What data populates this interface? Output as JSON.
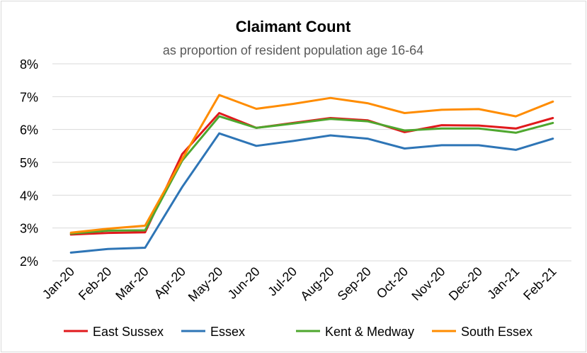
{
  "chart_data": {
    "type": "line",
    "title": "Claimant Count",
    "subtitle": "as proportion of resident population age 16-64",
    "xlabel": "",
    "ylabel": "",
    "categories": [
      "Jan-20",
      "Feb-20",
      "Mar-20",
      "Apr-20",
      "May-20",
      "Jun-20",
      "Jul-20",
      "Aug-20",
      "Sep-20",
      "Oct-20",
      "Nov-20",
      "Dec-20",
      "Jan-21",
      "Feb-21"
    ],
    "y_ticks": [
      "2%",
      "3%",
      "4%",
      "5%",
      "6%",
      "7%",
      "8%"
    ],
    "ylim": [
      2,
      8
    ],
    "grid": true,
    "legend_position": "bottom",
    "series": [
      {
        "name": "East Sussex",
        "color": "#e0191c",
        "values": [
          2.8,
          2.85,
          2.87,
          5.25,
          6.5,
          6.05,
          6.2,
          6.35,
          6.28,
          5.92,
          6.13,
          6.12,
          6.03,
          6.35
        ]
      },
      {
        "name": "Essex",
        "color": "#2e75b6",
        "values": [
          2.25,
          2.36,
          2.4,
          4.25,
          5.88,
          5.5,
          5.65,
          5.82,
          5.72,
          5.42,
          5.52,
          5.52,
          5.38,
          5.72
        ]
      },
      {
        "name": "Kent & Medway",
        "color": "#4ea72e",
        "values": [
          2.83,
          2.92,
          2.93,
          5.05,
          6.4,
          6.05,
          6.18,
          6.32,
          6.25,
          5.97,
          6.03,
          6.03,
          5.9,
          6.2
        ]
      },
      {
        "name": "South Essex",
        "color": "#ff8c00",
        "values": [
          2.86,
          2.98,
          3.07,
          5.1,
          7.05,
          6.63,
          6.78,
          6.96,
          6.8,
          6.5,
          6.6,
          6.62,
          6.4,
          6.85
        ]
      }
    ]
  }
}
